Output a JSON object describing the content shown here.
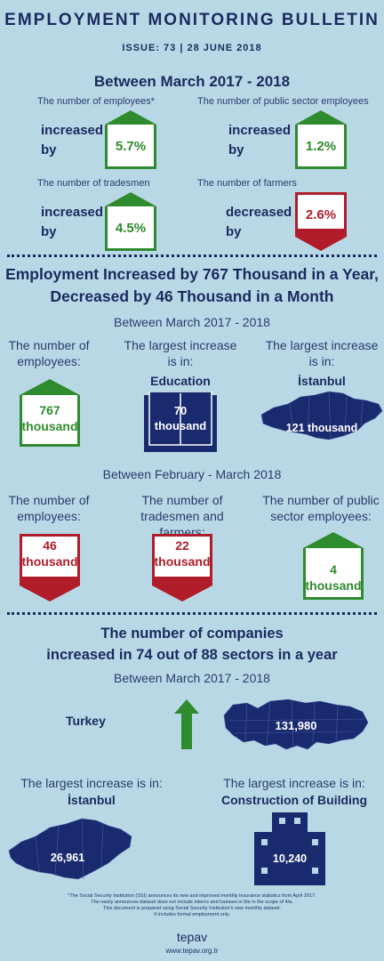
{
  "header": {
    "title": "EMPLOYMENT MONITORING BULLETIN",
    "issue": "ISSUE: 73 | 28 JUNE 2018"
  },
  "section1": {
    "heading": "Between March 2017 - 2018",
    "items": [
      {
        "label": "The number of employees*",
        "verb1": "increased",
        "verb2": "by",
        "value": "5.7%",
        "direction": "up"
      },
      {
        "label": "The number of public sector employees",
        "verb1": "increased",
        "verb2": "by",
        "value": "1.2%",
        "direction": "up"
      },
      {
        "label": "The number of tradesmen",
        "verb1": "increased",
        "verb2": "by",
        "value": "4.5%",
        "direction": "up"
      },
      {
        "label": "The number of farmers",
        "verb1": "decreased",
        "verb2": "by",
        "value": "2.6%",
        "direction": "down"
      }
    ]
  },
  "section2": {
    "heading_line1": "Employment Increased by 767 Thousand in a Year,",
    "heading_line2": "Decreased by 46 Thousand in a Month",
    "period1": "Between March 2017 - 2018",
    "yearly": [
      {
        "label1": "The number of",
        "label2": "employees:",
        "value1": "767",
        "value2": "thousand"
      },
      {
        "label1": "The largest increase",
        "label2": "is in:",
        "sector": "Education",
        "value1": "70",
        "value2": "thousand"
      },
      {
        "label1": "The largest increase",
        "label2": "is in:",
        "sector": "İstanbul",
        "value": "121 thousand"
      }
    ],
    "period2": "Between February - March 2018",
    "monthly": [
      {
        "label1": "The number of",
        "label2": "employees:",
        "value1": "46",
        "value2": "thousand"
      },
      {
        "label1": "The number of",
        "label2": "tradesmen and farmers:",
        "value1": "22",
        "value2": "thousand"
      },
      {
        "label1": "The number of public",
        "label2": "sector employees:",
        "value1": "4",
        "value2": "thousand"
      }
    ]
  },
  "section3": {
    "heading_line1": "The number of companies",
    "heading_line2": "increased in 74 out of 88 sectors in a year",
    "period": "Between March 2017 - 2018",
    "turkey_label": "Turkey",
    "turkey_value": "131,980",
    "istanbul_label": "The largest increase is in:",
    "istanbul_name": "İstanbul",
    "istanbul_value": "26,961",
    "construction_label": "The largest increase is in:",
    "construction_name": "Construction of Building",
    "construction_value": "10,240"
  },
  "footnote": {
    "line1": "*The Social Security Institution (SSI) announces its new and improved monthly insurance statistics from April 2017.",
    "line2": "The newly announces dataset does not include interns and trainees in the in the scope of 4/a.",
    "line3": "This document is prepared using Social Security Institution's new monthly dataset.",
    "line4": "It includes formal employment only."
  },
  "footer": {
    "brand": "tepav",
    "url": "www.tepav.org.tr"
  },
  "colors": {
    "background": "#b9d8e6",
    "navy": "#1a2a5e",
    "green": "#2e8b2e",
    "red": "#b01c2a"
  }
}
